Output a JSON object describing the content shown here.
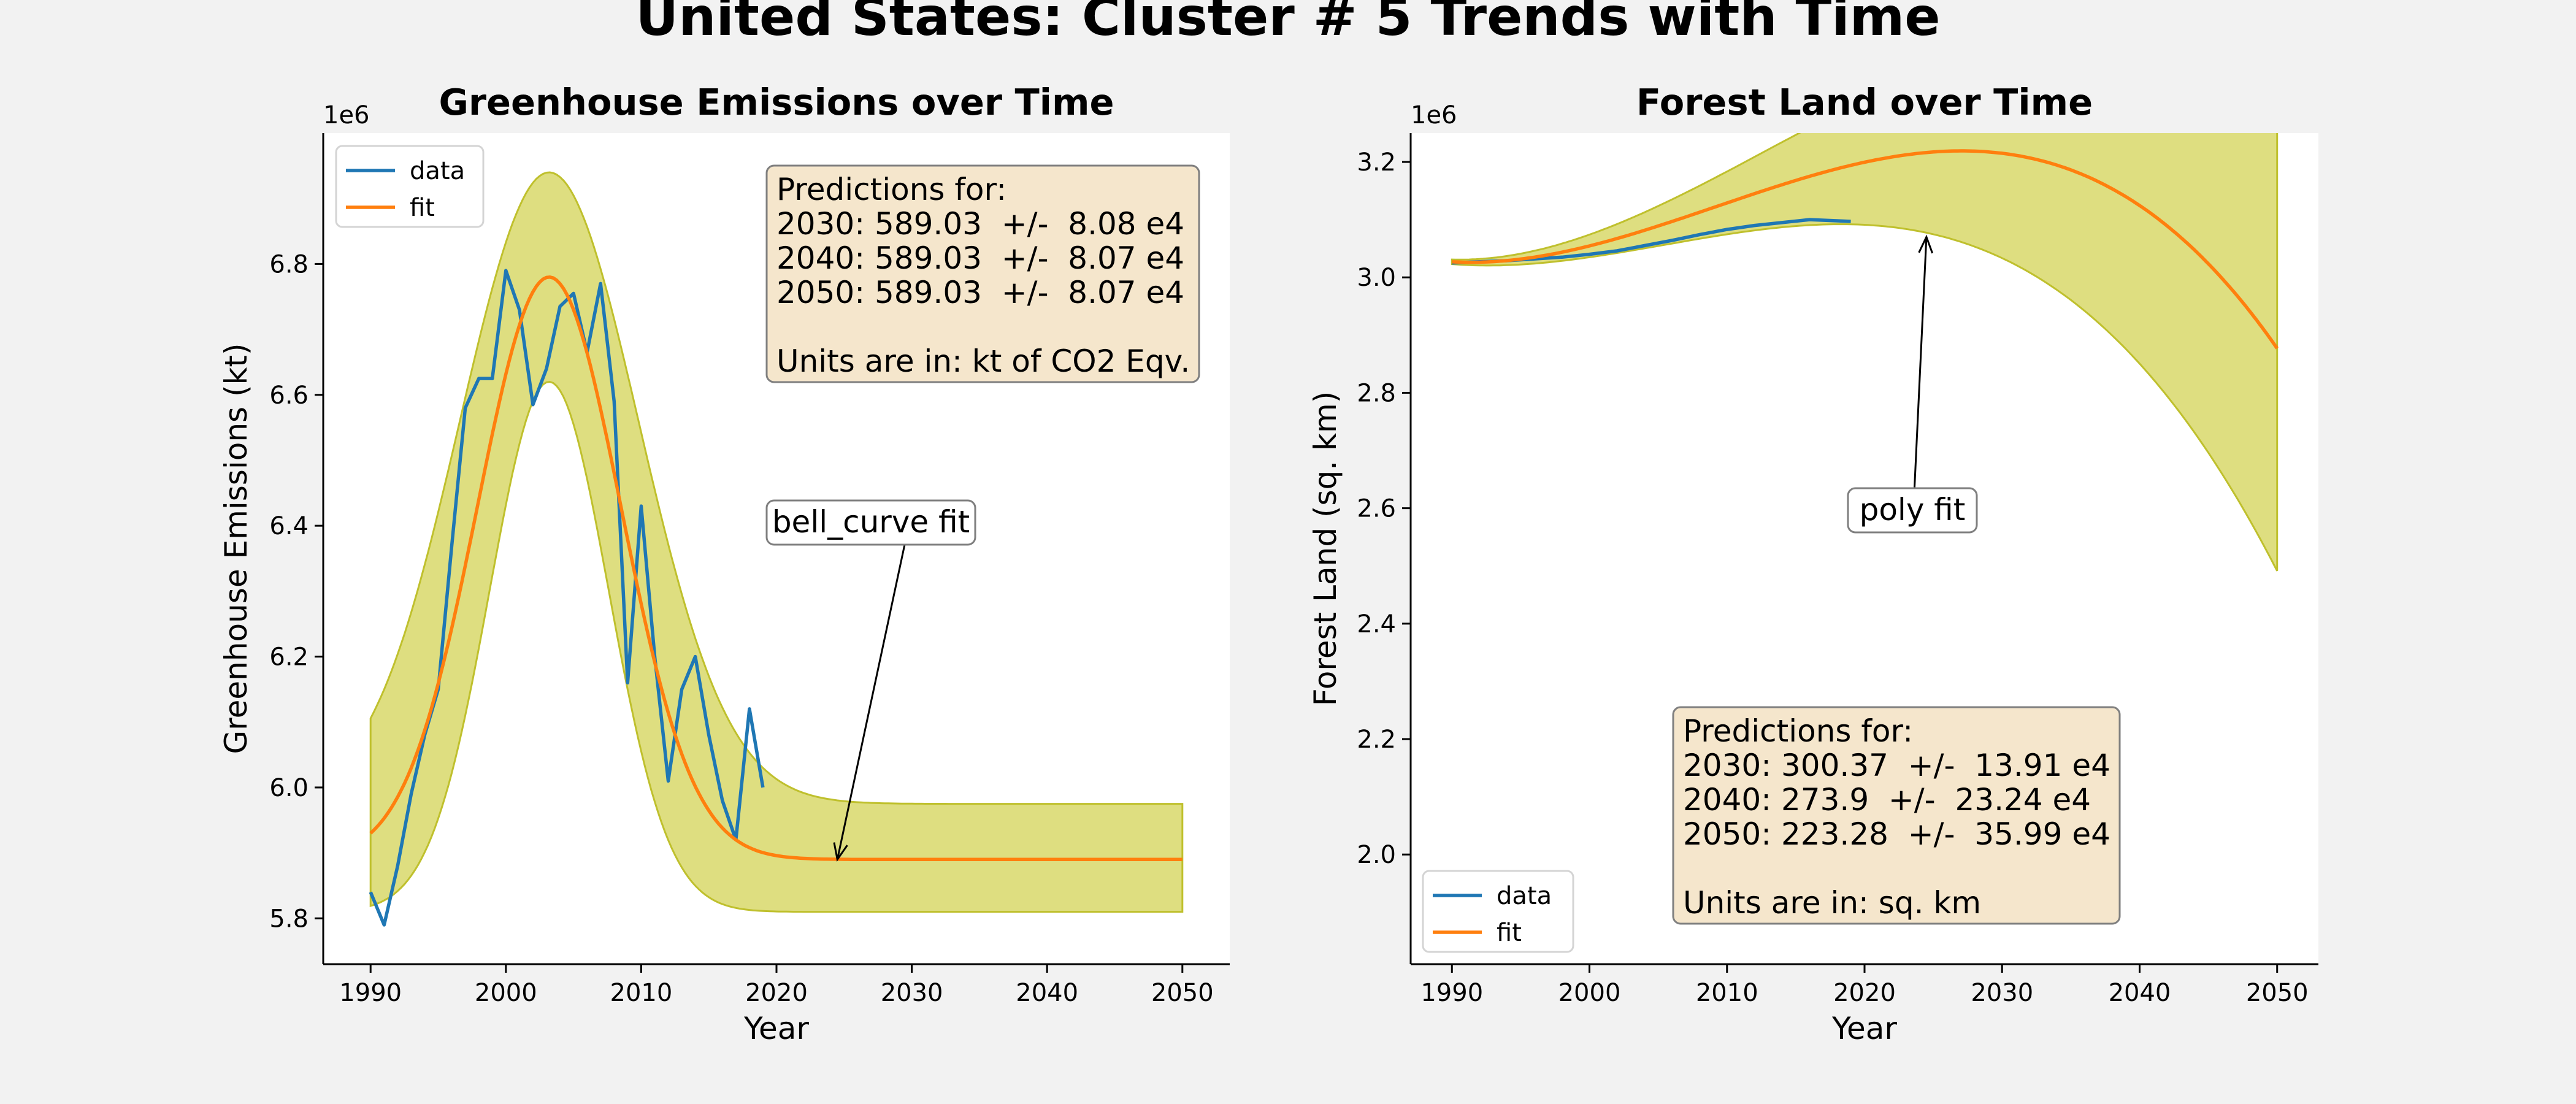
{
  "suptitle": "United States: Cluster # 5 Trends with Time",
  "colors": {
    "data": "#1f77b4",
    "fit": "#ff7f0e",
    "band": "#dddd7a",
    "band_edge": "#bcbd22",
    "box_fill": "#f5e6cc"
  },
  "chart_data": [
    {
      "type": "line",
      "title": "Greenhouse Emissions over Time",
      "xlabel": "Year",
      "ylabel": "Greenhouse Emissions (kt)",
      "offset_label": "1e6",
      "xlim": [
        1986.5,
        2053.5
      ],
      "ylim": [
        5.73,
        7.0
      ],
      "xticks": [
        1990,
        2000,
        2010,
        2020,
        2030,
        2040,
        2050
      ],
      "yticks": [
        5.8,
        6.0,
        6.2,
        6.4,
        6.6,
        6.8
      ],
      "ytick_labels": [
        "5.8",
        "6.0",
        "6.2",
        "6.4",
        "6.6",
        "6.8"
      ],
      "legend": {
        "position": "upper-left",
        "entries": [
          "data",
          "fit"
        ]
      },
      "series": [
        {
          "name": "data",
          "x": [
            1990,
            1991,
            1992,
            1993,
            1994,
            1995,
            1996,
            1997,
            1998,
            1999,
            2000,
            2001,
            2002,
            2003,
            2004,
            2005,
            2006,
            2007,
            2008,
            2009,
            2010,
            2011,
            2012,
            2013,
            2014,
            2015,
            2016,
            2017,
            2018,
            2019
          ],
          "y": [
            5.84,
            5.79,
            5.88,
            5.99,
            6.08,
            6.15,
            6.37,
            6.58,
            6.625,
            6.625,
            6.79,
            6.73,
            6.585,
            6.64,
            6.735,
            6.755,
            6.665,
            6.77,
            6.59,
            6.16,
            6.43,
            6.2,
            6.01,
            6.15,
            6.2,
            6.08,
            5.98,
            5.92,
            6.12,
            6.0
          ]
        },
        {
          "name": "fit",
          "kind": "bell",
          "center": 2003.2,
          "width": 5.3,
          "baseline": 5.89,
          "amplitude": 0.89,
          "x_range": [
            1990,
            2050
          ]
        }
      ],
      "band": {
        "kind": "bell",
        "center": 2003.2,
        "upper_width": 6.6,
        "upper_baseline": 5.975,
        "upper_amplitude": 0.965,
        "lower_width": 4.4,
        "lower_baseline": 5.81,
        "lower_amplitude": 0.81
      },
      "info_box": [
        "Predictions for:",
        "2030: 589.03  +/-  8.08 e4",
        "2040: 589.03  +/-  8.07 e4",
        "2050: 589.03  +/-  8.07 e4",
        "",
        "Units are in: kt of CO2 Eqv."
      ],
      "annotation": {
        "text": "bell_curve fit",
        "point": [
          2024.5,
          5.89
        ]
      }
    },
    {
      "type": "line",
      "title": "Forest Land over Time",
      "xlabel": "Year",
      "ylabel": "Forest Land (sq. km)",
      "offset_label": "1e6",
      "xlim": [
        1987,
        2053
      ],
      "ylim": [
        1.81,
        3.25
      ],
      "xticks": [
        1990,
        2000,
        2010,
        2020,
        2030,
        2040,
        2050
      ],
      "yticks": [
        2.0,
        2.2,
        2.4,
        2.6,
        2.8,
        3.0,
        3.2
      ],
      "ytick_labels": [
        "2.0",
        "2.2",
        "2.4",
        "2.6",
        "2.8",
        "3.0",
        "3.2"
      ],
      "legend": {
        "position": "lower-left",
        "entries": [
          "data",
          "fit"
        ]
      },
      "series": [
        {
          "name": "data",
          "x": [
            1990,
            1992,
            1994,
            1996,
            1998,
            2000,
            2002,
            2004,
            2006,
            2008,
            2010,
            2012,
            2014,
            2016,
            2018,
            2019
          ],
          "y": [
            3.025,
            3.027,
            3.029,
            3.032,
            3.035,
            3.04,
            3.046,
            3.055,
            3.064,
            3.074,
            3.083,
            3.09,
            3.095,
            3.1,
            3.098,
            3.097
          ]
        },
        {
          "name": "fit",
          "kind": "poly3",
          "coeffs_t": [
            3.027,
            -0.0013,
            0.00049,
            -8.5e-06
          ],
          "t_origin": 1990,
          "x_range": [
            1990,
            2050
          ]
        }
      ],
      "band": {
        "kind": "poly_spread",
        "upper_offset": [
          0.0,
          -0.0015,
          0.000126
        ],
        "lower_offset": [
          0.0,
          -0.0015,
          0.000126
        ]
      },
      "info_box": [
        "Predictions for:",
        "2030: 300.37  +/-  13.91 e4",
        "2040: 273.9  +/-  23.24 e4",
        "2050: 223.28  +/-  35.99 e4",
        "",
        "Units are in: sq. km"
      ],
      "annotation": {
        "text": "poly fit",
        "point": [
          2024.5,
          3.07
        ]
      }
    }
  ]
}
